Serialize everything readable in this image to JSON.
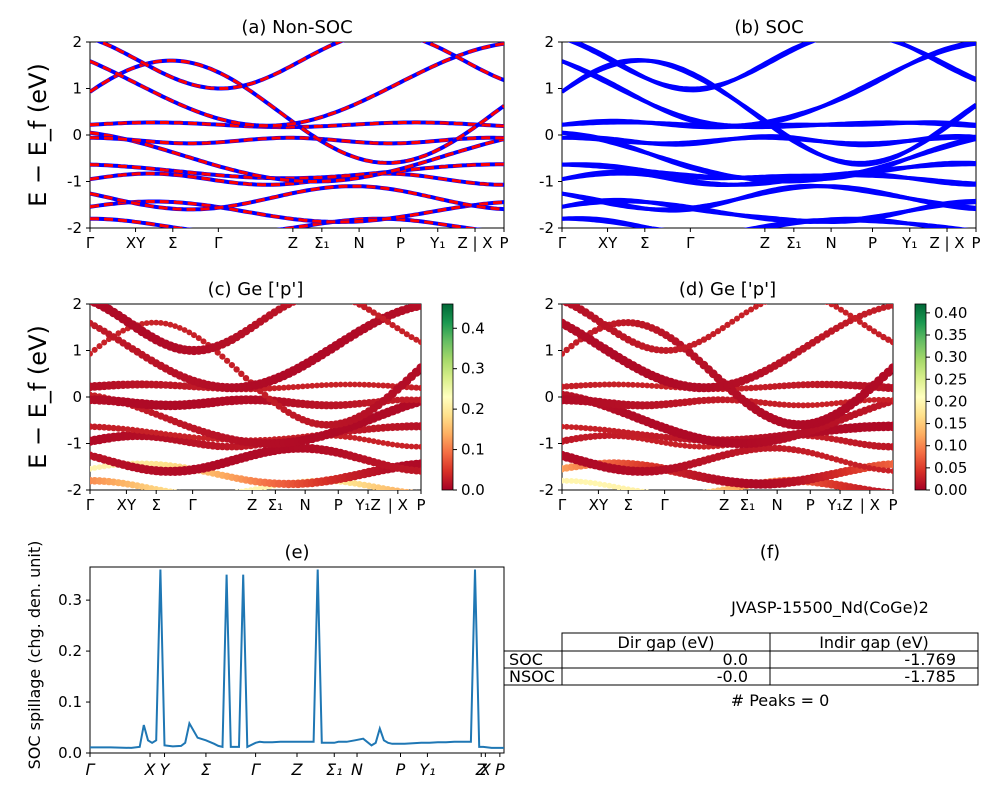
{
  "chart_data": [
    {
      "type": "line",
      "panel": "a",
      "title": "(a) Non-SOC",
      "ylabel": "E − E_f (eV)",
      "ylim": [
        -2,
        2
      ],
      "yticks": [
        -2,
        -1,
        0,
        1,
        2
      ],
      "xticklabels": [
        "Γ",
        "XY",
        "Σ",
        "Γ",
        "Z",
        "Σ₁",
        "N",
        "P",
        "Y₁",
        "Z | X",
        "P"
      ],
      "series": [
        {
          "style": "solid",
          "color": "#0000ff"
        },
        {
          "style": "dashed",
          "color": "#ff0000"
        }
      ]
    },
    {
      "type": "line",
      "panel": "b",
      "title": "(b) SOC",
      "ylim": [
        -2,
        2
      ],
      "yticks": [
        -2,
        -1,
        0,
        1,
        2
      ],
      "xticklabels": [
        "Γ",
        "XY",
        "Σ",
        "Γ",
        "Z",
        "Σ₁",
        "N",
        "P",
        "Y₁",
        "Z | X",
        "P"
      ],
      "series": [
        {
          "style": "solid",
          "color": "#0000ff"
        }
      ]
    },
    {
      "type": "scatter",
      "panel": "c",
      "title": "(c)  Ge ['p']",
      "ylabel": "E − E_f (eV)",
      "ylim": [
        -2,
        2
      ],
      "yticks": [
        -2,
        -1,
        0,
        1,
        2
      ],
      "xticklabels": [
        "Γ",
        "XY",
        "Σ",
        "Γ",
        "Z",
        "Σ₁",
        "N",
        "P",
        "Y₁Z",
        "| X",
        "P"
      ],
      "colorbar": {
        "cmap": "RdYlGn",
        "range": [
          0.0,
          0.46
        ],
        "ticks": [
          "0.0",
          "0.1",
          "0.2",
          "0.3",
          "0.4"
        ]
      }
    },
    {
      "type": "scatter",
      "panel": "d",
      "title": "(d) Ge ['p']",
      "ylim": [
        -2,
        2
      ],
      "yticks": [
        -2,
        -1,
        0,
        1,
        2
      ],
      "xticklabels": [
        "Γ",
        "XY",
        "Σ",
        "Γ",
        "Z",
        "Σ₁",
        "N",
        "P",
        "Y₁Z",
        "| X",
        "P"
      ],
      "colorbar": {
        "cmap": "RdYlGn",
        "range": [
          0.0,
          0.42
        ],
        "ticks": [
          "0.00",
          "0.05",
          "0.10",
          "0.15",
          "0.20",
          "0.25",
          "0.30",
          "0.35",
          "0.40"
        ]
      }
    },
    {
      "type": "line",
      "panel": "e",
      "title": "(e)",
      "ylabel": "SOC spillage (chg. den. unit)",
      "ylim": [
        0,
        0.365
      ],
      "yticks": [
        "0.0",
        "0.1",
        "0.2",
        "0.3"
      ],
      "xticklabels": [
        "Γ",
        "X",
        "Y",
        "Σ",
        "Γ",
        "Z",
        "Σ₁",
        "N",
        "P",
        "Y₁",
        "Z",
        "X",
        "P"
      ],
      "x": [
        0,
        5,
        10,
        20,
        24,
        26,
        28,
        30,
        32,
        34,
        36,
        40,
        44,
        46,
        48,
        52,
        56,
        60,
        62,
        64,
        66,
        68,
        70,
        72,
        74,
        76,
        80,
        82,
        84,
        88,
        92,
        96,
        100,
        104,
        108,
        110,
        112,
        114,
        116,
        118,
        120,
        124,
        128,
        132,
        136,
        138,
        140,
        142,
        144,
        146,
        148,
        150,
        152,
        156,
        160,
        164,
        168,
        172,
        176,
        180,
        184,
        186,
        188,
        190,
        194,
        198,
        200
      ],
      "values": [
        0.011,
        0.011,
        0.011,
        0.01,
        0.012,
        0.055,
        0.025,
        0.02,
        0.025,
        0.36,
        0.015,
        0.013,
        0.014,
        0.02,
        0.058,
        0.03,
        0.025,
        0.018,
        0.014,
        0.012,
        0.35,
        0.012,
        0.012,
        0.012,
        0.35,
        0.012,
        0.02,
        0.022,
        0.021,
        0.021,
        0.022,
        0.022,
        0.022,
        0.022,
        0.022,
        0.36,
        0.02,
        0.02,
        0.02,
        0.02,
        0.022,
        0.022,
        0.025,
        0.028,
        0.015,
        0.02,
        0.048,
        0.025,
        0.02,
        0.018,
        0.018,
        0.018,
        0.018,
        0.019,
        0.02,
        0.02,
        0.021,
        0.021,
        0.022,
        0.022,
        0.022,
        0.36,
        0.012,
        0.012,
        0.01,
        0.01,
        0.01
      ]
    },
    {
      "type": "table",
      "panel": "f",
      "title": "(f)",
      "subtitle": "JVASP-15500_Nd(CoGe)2",
      "columns": [
        "Dir gap (eV)",
        "Indir gap (eV)"
      ],
      "rows": [
        {
          "label": "SOC",
          "values": [
            "0.0",
            "-1.769"
          ]
        },
        {
          "label": "NSOC",
          "values": [
            "-0.0",
            "-1.785"
          ]
        }
      ],
      "footer": "# Peaks = 0"
    }
  ]
}
